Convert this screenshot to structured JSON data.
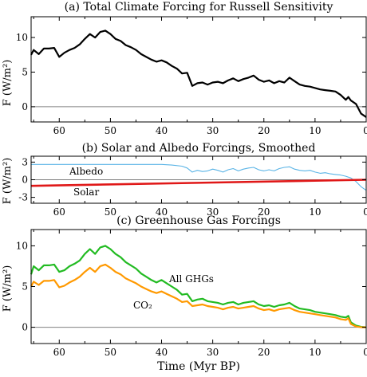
{
  "figure": {
    "xlabel": "Time (Myr BP)"
  },
  "colors": {
    "axis": "#000000",
    "zero_line": "#808080",
    "total": "#000000",
    "albedo": "#5ab4e6",
    "solar": "#e01818",
    "all_ghg": "#22bb22",
    "co2": "#ff9900"
  },
  "chart_data": [
    {
      "type": "line",
      "title": "(a) Total Climate Forcing for Russell Sensitivity",
      "ylabel": "F (W/m²)",
      "xlim": [
        65.5,
        0
      ],
      "ylim": [
        -2.2,
        13
      ],
      "xticks": [
        60,
        50,
        40,
        30,
        20,
        10,
        0
      ],
      "yticks": [
        0,
        5,
        10
      ],
      "zero_line": true,
      "series": [
        {
          "name": "",
          "x": [
            65.5,
            65,
            64,
            63,
            62,
            61,
            60,
            59,
            58,
            57,
            56,
            55,
            54,
            53,
            52,
            51,
            50,
            49,
            48,
            47,
            46,
            45,
            44,
            43,
            42,
            41,
            40,
            39,
            38,
            37,
            36,
            35,
            34,
            33,
            32,
            31,
            30,
            29,
            28,
            27,
            26,
            25,
            24,
            23,
            22,
            21,
            20,
            19,
            18,
            17,
            16,
            15,
            14,
            13,
            12,
            11,
            10,
            9,
            8,
            7,
            6,
            5,
            4,
            3.5,
            3,
            2,
            1,
            0
          ],
          "values": [
            7.5,
            8.2,
            7.6,
            8.4,
            8.4,
            8.5,
            7.2,
            7.8,
            8.2,
            8.5,
            9.0,
            9.8,
            10.5,
            10.0,
            10.8,
            11.0,
            10.5,
            9.8,
            9.5,
            8.9,
            8.6,
            8.2,
            7.6,
            7.2,
            6.8,
            6.5,
            6.7,
            6.4,
            5.9,
            5.5,
            4.8,
            4.9,
            3.0,
            3.4,
            3.5,
            3.2,
            3.5,
            3.6,
            3.4,
            3.8,
            4.1,
            3.7,
            4.0,
            4.2,
            4.5,
            3.9,
            3.6,
            3.8,
            3.4,
            3.7,
            3.5,
            4.2,
            3.7,
            3.2,
            3.0,
            2.9,
            2.7,
            2.5,
            2.4,
            2.3,
            2.2,
            1.7,
            1.0,
            1.4,
            0.9,
            0.4,
            -1.0,
            -1.5
          ]
        }
      ]
    },
    {
      "type": "line",
      "title": "(b) Solar and Albedo Forcings, Smoothed",
      "ylabel": "F (W/m²)",
      "xlim": [
        65.5,
        0
      ],
      "ylim": [
        -4,
        4
      ],
      "xticks": [
        60,
        50,
        40,
        30,
        20,
        10,
        0
      ],
      "yticks": [
        -3,
        0,
        3
      ],
      "zero_line": true,
      "annotations": [
        "Albedo",
        "Solar"
      ],
      "series": [
        {
          "name": "Albedo",
          "x": [
            65.5,
            55,
            45,
            40,
            38,
            36,
            35,
            34,
            33,
            32,
            31,
            30,
            29,
            28,
            27,
            26,
            25,
            24,
            23,
            22,
            21,
            20,
            19,
            18,
            17,
            16,
            15,
            14,
            13,
            12,
            11,
            10,
            9,
            8,
            7,
            6,
            5,
            4,
            3,
            2,
            1,
            0
          ],
          "values": [
            2.6,
            2.6,
            2.6,
            2.6,
            2.5,
            2.3,
            2.0,
            1.3,
            1.6,
            1.4,
            1.5,
            1.8,
            1.6,
            1.3,
            1.7,
            1.9,
            1.5,
            1.8,
            2.0,
            2.1,
            1.7,
            1.5,
            1.7,
            1.5,
            1.9,
            2.1,
            2.2,
            1.8,
            1.6,
            1.5,
            1.6,
            1.3,
            1.1,
            1.2,
            1.0,
            0.9,
            0.8,
            0.6,
            0.3,
            -0.3,
            -1.2,
            -1.8
          ]
        },
        {
          "name": "Solar",
          "x": [
            65.5,
            0
          ],
          "values": [
            -1.05,
            0
          ]
        }
      ]
    },
    {
      "type": "line",
      "title": "(c) Greenhouse Gas Forcings",
      "ylabel": "F (W/m²)",
      "xlim": [
        65.5,
        0
      ],
      "ylim": [
        -2,
        12
      ],
      "xticks": [
        60,
        50,
        40,
        30,
        20,
        10,
        0
      ],
      "yticks": [
        0,
        5,
        10
      ],
      "zero_line": true,
      "annotations": [
        "All GHGs",
        "CO₂"
      ],
      "series": [
        {
          "name": "All GHGs",
          "x": [
            65.5,
            65,
            64,
            63,
            62,
            61,
            60,
            59,
            58,
            57,
            56,
            55,
            54,
            53,
            52,
            51,
            50,
            49,
            48,
            47,
            46,
            45,
            44,
            43,
            42,
            41,
            40,
            39,
            38,
            37,
            36,
            35,
            34,
            33,
            32,
            31,
            30,
            29,
            28,
            27,
            26,
            25,
            24,
            23,
            22,
            21,
            20,
            19,
            18,
            17,
            16,
            15,
            14,
            13,
            12,
            11,
            10,
            9,
            8,
            7,
            6,
            5,
            4,
            3.5,
            3,
            2,
            1,
            0
          ],
          "values": [
            6.5,
            7.5,
            7.0,
            7.6,
            7.6,
            7.7,
            6.8,
            7.0,
            7.5,
            7.8,
            8.2,
            9.0,
            9.6,
            9.0,
            9.8,
            10.0,
            9.6,
            9.0,
            8.6,
            8.0,
            7.6,
            7.2,
            6.6,
            6.2,
            5.8,
            5.5,
            5.8,
            5.4,
            5.0,
            4.6,
            4.0,
            4.1,
            3.2,
            3.4,
            3.5,
            3.2,
            3.1,
            3.0,
            2.8,
            3.0,
            3.1,
            2.8,
            3.0,
            3.1,
            3.2,
            2.8,
            2.6,
            2.7,
            2.5,
            2.7,
            2.8,
            3.0,
            2.6,
            2.3,
            2.2,
            2.1,
            1.9,
            1.8,
            1.7,
            1.6,
            1.5,
            1.3,
            1.2,
            1.4,
            0.6,
            0.2,
            0.05,
            0
          ]
        },
        {
          "name": "CO₂",
          "x": [
            65.5,
            65,
            64,
            63,
            62,
            61,
            60,
            59,
            58,
            57,
            56,
            55,
            54,
            53,
            52,
            51,
            50,
            49,
            48,
            47,
            46,
            45,
            44,
            43,
            42,
            41,
            40,
            39,
            38,
            37,
            36,
            35,
            34,
            33,
            32,
            31,
            30,
            29,
            28,
            27,
            26,
            25,
            24,
            23,
            22,
            21,
            20,
            19,
            18,
            17,
            16,
            15,
            14,
            13,
            12,
            11,
            10,
            9,
            8,
            7,
            6,
            5,
            4,
            3.5,
            3,
            2,
            1,
            0
          ],
          "values": [
            5.0,
            5.6,
            5.2,
            5.7,
            5.7,
            5.8,
            4.9,
            5.1,
            5.5,
            5.8,
            6.2,
            6.8,
            7.3,
            6.8,
            7.5,
            7.7,
            7.3,
            6.8,
            6.5,
            6.0,
            5.7,
            5.4,
            5.0,
            4.7,
            4.4,
            4.2,
            4.4,
            4.1,
            3.8,
            3.5,
            3.1,
            3.2,
            2.6,
            2.7,
            2.8,
            2.6,
            2.5,
            2.4,
            2.2,
            2.4,
            2.5,
            2.3,
            2.4,
            2.5,
            2.6,
            2.3,
            2.1,
            2.2,
            2.0,
            2.2,
            2.3,
            2.4,
            2.1,
            1.9,
            1.8,
            1.7,
            1.6,
            1.5,
            1.4,
            1.3,
            1.2,
            1.0,
            0.9,
            1.1,
            0.4,
            0.1,
            0,
            0
          ]
        }
      ]
    }
  ]
}
